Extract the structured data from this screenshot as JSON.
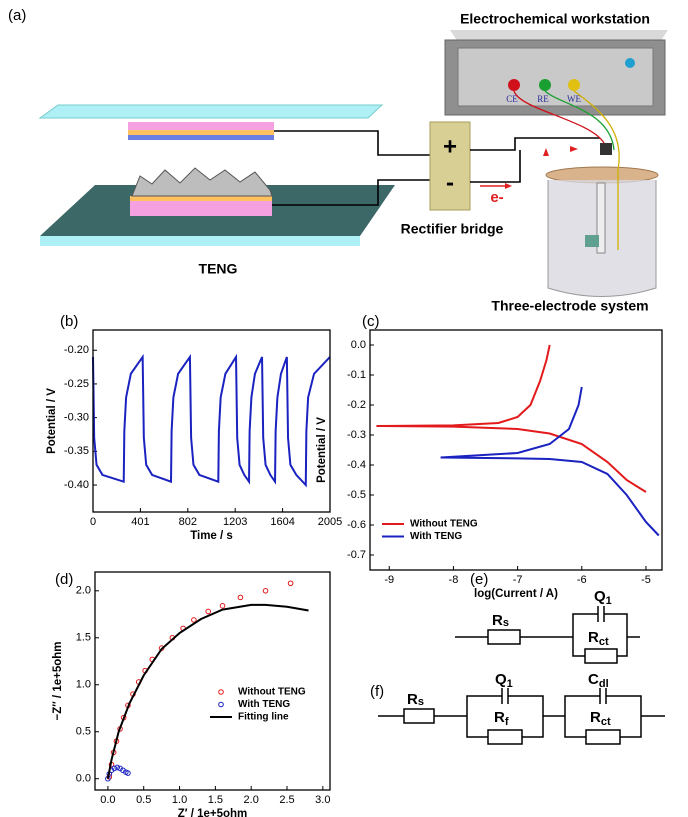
{
  "diagram": {
    "panel_label": "(a)",
    "workstation": "Electrochemical workstation",
    "ce": "CE",
    "re": "RE",
    "we": "WE",
    "plus": "+",
    "minus": "-",
    "electron": "e-",
    "rectifier": "Rectifier bridge",
    "teng": "TENG",
    "cell": "Three-electrode system"
  },
  "circuits": [
    {
      "label": "(e)",
      "elements": [
        {
          "name": "R",
          "sub": "s"
        },
        {
          "name": "Q",
          "sub": "1"
        },
        {
          "name": "R",
          "sub": "ct"
        }
      ]
    },
    {
      "label": "(f)",
      "elements": [
        {
          "name": "R",
          "sub": "s"
        },
        {
          "name": "Q",
          "sub": "1"
        },
        {
          "name": "R",
          "sub": "f"
        },
        {
          "name": "C",
          "sub": "dl"
        },
        {
          "name": "R",
          "sub": "ct"
        }
      ]
    }
  ],
  "chart_data": [
    {
      "type": "line",
      "panel_label": "(b)",
      "xlabel": "Time / s",
      "ylabel": "Potential / V",
      "xlim": [
        0,
        2005
      ],
      "xticks": [
        0,
        401,
        802,
        1203,
        1604,
        2005
      ],
      "ylim": [
        -0.44,
        -0.17
      ],
      "yticks": [
        {
          "value": -0.2,
          "label": "-0.20"
        },
        -0.25,
        {
          "value": -0.3,
          "label": "-0.30"
        },
        -0.35,
        {
          "value": -0.4,
          "label": "-0.40"
        }
      ],
      "x": [
        0,
        10,
        30,
        80,
        260,
        265,
        280,
        320,
        420,
        430,
        450,
        500,
        660,
        665,
        680,
        720,
        820,
        830,
        850,
        900,
        1060,
        1065,
        1080,
        1120,
        1210,
        1220,
        1240,
        1280,
        1320,
        1325,
        1340,
        1370,
        1430,
        1440,
        1460,
        1500,
        1540,
        1545,
        1560,
        1590,
        1640,
        1650,
        1670,
        1720,
        1800,
        1805,
        1820,
        1870,
        2005
      ],
      "series": [
        {
          "color": "#1a22c0",
          "values": [
            -0.21,
            -0.33,
            -0.37,
            -0.385,
            -0.395,
            -0.32,
            -0.27,
            -0.235,
            -0.21,
            -0.33,
            -0.37,
            -0.385,
            -0.395,
            -0.32,
            -0.27,
            -0.235,
            -0.21,
            -0.33,
            -0.37,
            -0.385,
            -0.395,
            -0.32,
            -0.27,
            -0.235,
            -0.21,
            -0.33,
            -0.37,
            -0.385,
            -0.395,
            -0.32,
            -0.27,
            -0.235,
            -0.21,
            -0.33,
            -0.37,
            -0.385,
            -0.395,
            -0.32,
            -0.27,
            -0.235,
            -0.21,
            -0.33,
            -0.37,
            -0.385,
            -0.4,
            -0.32,
            -0.27,
            -0.235,
            -0.21
          ]
        }
      ]
    },
    {
      "type": "line",
      "panel_label": "(c)",
      "xlabel": "log(Current / A)",
      "ylabel": "Potential / V",
      "xlim": [
        -9.3,
        -4.75
      ],
      "xticks": [
        -9,
        -8,
        -7,
        -6,
        -5
      ],
      "ylim": [
        -0.75,
        0.05
      ],
      "yticks": [
        {
          "value": 0,
          "label": "0.0"
        },
        -0.1,
        -0.2,
        -0.3,
        -0.4,
        -0.5,
        -0.6,
        -0.7
      ],
      "legend": "lower left",
      "series": [
        {
          "name": "Without TENG",
          "color": "#e31a1c",
          "x": [
            -6.5,
            -6.55,
            -6.65,
            -6.8,
            -7.0,
            -7.3,
            -8.0,
            -9.2,
            -8.0,
            -7.0,
            -6.5,
            -6.0,
            -5.6,
            -5.3,
            -5.0
          ],
          "values": [
            0.0,
            -0.05,
            -0.12,
            -0.2,
            -0.24,
            -0.26,
            -0.268,
            -0.27,
            -0.272,
            -0.28,
            -0.295,
            -0.33,
            -0.39,
            -0.45,
            -0.49
          ]
        },
        {
          "name": "With TENG",
          "color": "#1a22c0",
          "x": [
            -6.0,
            -6.05,
            -6.2,
            -6.5,
            -7.0,
            -8.2,
            -7.0,
            -6.5,
            -6.0,
            -5.6,
            -5.3,
            -5.0,
            -4.8
          ],
          "values": [
            -0.14,
            -0.2,
            -0.28,
            -0.33,
            -0.36,
            -0.375,
            -0.378,
            -0.38,
            -0.39,
            -0.43,
            -0.5,
            -0.59,
            -0.635
          ]
        }
      ]
    },
    {
      "type": "scatter",
      "panel_label": "(d)",
      "xlabel": "Z′ / 1e+5ohm",
      "ylabel": "−Z′′ / 1e+5ohm",
      "xlim": [
        -0.18,
        3.1
      ],
      "xticks": [
        {
          "value": 0,
          "label": "0.0"
        },
        0.5,
        {
          "value": 1,
          "label": "1.0"
        },
        1.5,
        {
          "value": 2,
          "label": "2.0"
        },
        2.5,
        {
          "value": 3,
          "label": "3.0"
        }
      ],
      "ylim": [
        -0.12,
        2.2
      ],
      "yticks": [
        {
          "value": 0,
          "label": "0.0"
        },
        0.5,
        {
          "value": 1,
          "label": "1.0"
        },
        1.5,
        {
          "value": 2,
          "label": "2.0"
        }
      ],
      "legend": "lower right",
      "series": [
        {
          "name": "Without TENG",
          "color": "#e31a1c",
          "x": [
            0.02,
            0.05,
            0.08,
            0.12,
            0.17,
            0.22,
            0.28,
            0.35,
            0.43,
            0.52,
            0.62,
            0.75,
            0.9,
            1.05,
            1.2,
            1.4,
            1.6,
            1.85,
            2.2,
            2.55
          ],
          "values": [
            0.02,
            0.15,
            0.28,
            0.4,
            0.53,
            0.65,
            0.78,
            0.9,
            1.03,
            1.15,
            1.27,
            1.39,
            1.5,
            1.6,
            1.69,
            1.78,
            1.84,
            1.93,
            2.0,
            2.08
          ]
        },
        {
          "name": "With TENG",
          "color": "#1a22c0",
          "x": [
            0.0,
            0.02,
            0.05,
            0.09,
            0.13,
            0.17,
            0.21,
            0.25,
            0.28
          ],
          "values": [
            0.0,
            0.05,
            0.09,
            0.11,
            0.12,
            0.11,
            0.09,
            0.07,
            0.06
          ]
        },
        {
          "name": "Fitting line",
          "color": "#000000",
          "style": "line",
          "x": [
            0,
            0.05,
            0.15,
            0.3,
            0.5,
            0.75,
            1.0,
            1.3,
            1.6,
            2.0,
            2.2,
            2.5,
            2.8
          ],
          "values": [
            0,
            0.2,
            0.5,
            0.8,
            1.1,
            1.38,
            1.55,
            1.7,
            1.8,
            1.85,
            1.85,
            1.83,
            1.79
          ]
        }
      ]
    }
  ]
}
